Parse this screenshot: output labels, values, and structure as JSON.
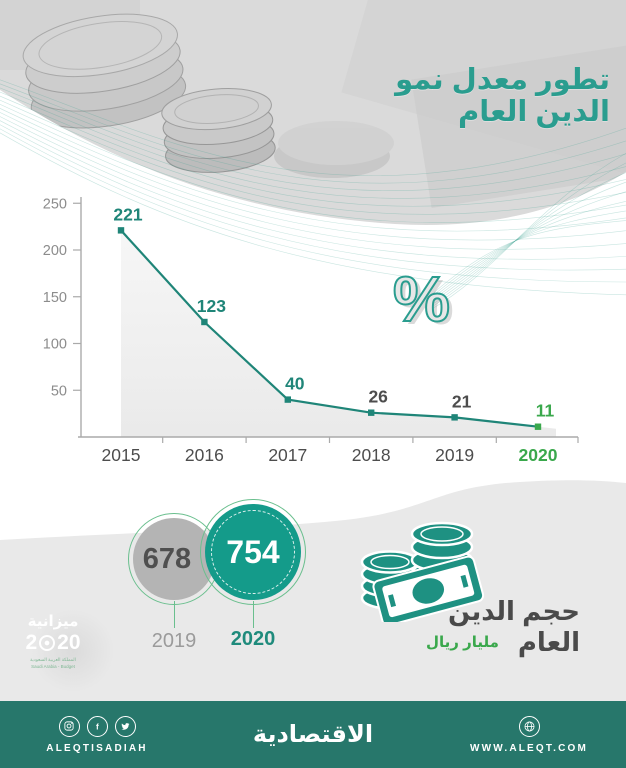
{
  "header": {
    "title": "تطور معدل نمو الدين العام"
  },
  "chart_data": {
    "type": "line",
    "title": "تطور معدل نمو الدين العام",
    "unit": "%",
    "categories": [
      "2015",
      "2016",
      "2017",
      "2018",
      "2019",
      "2020"
    ],
    "values": [
      221,
      123,
      40,
      26,
      21,
      11
    ],
    "yticks": [
      50,
      100,
      150,
      200,
      250
    ],
    "ylim": [
      0,
      250
    ],
    "area_fill": true,
    "grid": false,
    "legend": "none",
    "value_label_colors": [
      "teal",
      "teal",
      "teal",
      "dark",
      "dark",
      "green"
    ],
    "x_label_colors": [
      "dark",
      "dark",
      "dark",
      "dark",
      "dark",
      "green"
    ]
  },
  "percent_watermark": "%",
  "debt_size": {
    "title": "حجم الدين العام",
    "subtitle": "مليار ريال",
    "circles": [
      {
        "value": "678",
        "year": "2019",
        "variant": "gray"
      },
      {
        "value": "754",
        "year": "2020",
        "variant": "teal"
      }
    ]
  },
  "budget_logo": {
    "title": "ميزانية",
    "year_prefix": "2",
    "year_suffix": "20",
    "sub_line1": "المملكة العربية السعودية",
    "sub_line2": "Saudi Arabia - Budget"
  },
  "footer": {
    "handle": "ALEQTISADIAH",
    "logo": "الاقتصادية",
    "website": "WWW.ALEQT.COM"
  },
  "colors": {
    "teal": "#1f8578",
    "teal_bright": "#2a9d8f",
    "green": "#3aa84c",
    "dark": "#4d4d4d",
    "tick_label": "#8c8c8c",
    "axis": "#aaaaaa",
    "area_top": "#f5f5f5",
    "area_bottom": "#e6e6e6",
    "circle_gray": "#b4b4b4",
    "circle_teal": "#149b8a",
    "ring_green": "#6abf8e",
    "wave_gray": "#e9e9e9",
    "footer_bg": "#27776b",
    "icon_teal": "#1e9182"
  }
}
